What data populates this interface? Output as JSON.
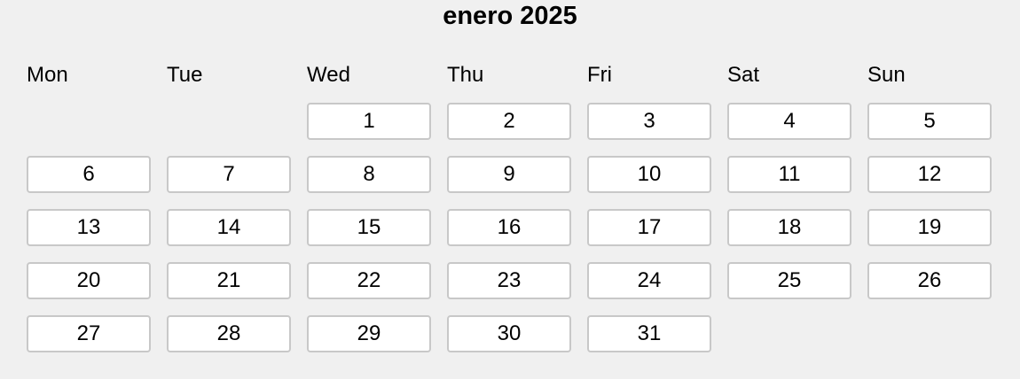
{
  "title": "enero 2025",
  "weekdays": [
    "Mon",
    "Tue",
    "Wed",
    "Thu",
    "Fri",
    "Sat",
    "Sun"
  ],
  "first_weekday_index": 2,
  "days": [
    "1",
    "2",
    "3",
    "4",
    "5",
    "6",
    "7",
    "8",
    "9",
    "10",
    "11",
    "12",
    "13",
    "14",
    "15",
    "16",
    "17",
    "18",
    "19",
    "20",
    "21",
    "22",
    "23",
    "24",
    "25",
    "26",
    "27",
    "28",
    "29",
    "30",
    "31"
  ],
  "colors": {
    "background": "#f0f0f0",
    "day_button": "#ffffff",
    "day_border": "#c8c8c8",
    "text": "#000000"
  }
}
